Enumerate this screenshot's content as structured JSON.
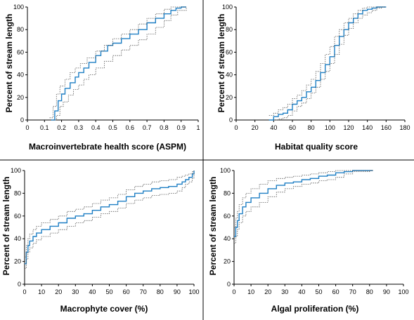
{
  "style": {
    "line_color": "#1f7fc4",
    "ci_color": "#555555",
    "axis_color": "#000000",
    "divider_color": "#000000"
  },
  "chart_data": [
    {
      "type": "line",
      "title": "",
      "xlabel": "Macroinvertebrate health score (ASPM)",
      "ylabel": "Percent of stream length",
      "xlim": [
        0,
        1
      ],
      "ylim": [
        0,
        100
      ],
      "xticks": [
        "0",
        "0.1",
        "0.2",
        "0.3",
        "0.4",
        "0.5",
        "0.6",
        "0.7",
        "0.8",
        "0.9",
        "1"
      ],
      "yticks": [
        "0",
        "20",
        "40",
        "60",
        "80",
        "100"
      ],
      "grid": false,
      "legend": "none",
      "series": [
        {
          "role": "estimate",
          "x": [
            0.14,
            0.16,
            0.18,
            0.2,
            0.22,
            0.25,
            0.28,
            0.3,
            0.33,
            0.36,
            0.4,
            0.43,
            0.47,
            0.5,
            0.55,
            0.6,
            0.65,
            0.7,
            0.75,
            0.8,
            0.84,
            0.87,
            0.9,
            0.93
          ],
          "y": [
            0,
            8,
            17,
            23,
            28,
            33,
            38,
            42,
            46,
            51,
            57,
            61,
            66,
            68,
            72,
            76,
            80,
            86,
            90,
            94,
            97,
            99,
            100,
            100
          ]
        },
        {
          "role": "upper",
          "x": [
            0.13,
            0.15,
            0.17,
            0.19,
            0.22,
            0.25,
            0.28,
            0.31,
            0.35,
            0.4,
            0.45,
            0.5,
            0.55,
            0.6,
            0.65,
            0.7,
            0.75,
            0.8,
            0.84,
            0.87,
            0.93
          ],
          "y": [
            2,
            12,
            23,
            30,
            36,
            42,
            46,
            50,
            55,
            61,
            66,
            72,
            76,
            80,
            85,
            90,
            94,
            98,
            100,
            100,
            100
          ]
        },
        {
          "role": "lower",
          "x": [
            0.15,
            0.17,
            0.19,
            0.21,
            0.24,
            0.27,
            0.3,
            0.33,
            0.36,
            0.4,
            0.45,
            0.5,
            0.55,
            0.6,
            0.65,
            0.7,
            0.75,
            0.8,
            0.84,
            0.88,
            0.93
          ],
          "y": [
            0,
            4,
            12,
            16,
            22,
            27,
            31,
            36,
            40,
            46,
            52,
            57,
            62,
            66,
            71,
            76,
            82,
            88,
            93,
            97,
            100
          ]
        }
      ]
    },
    {
      "type": "line",
      "title": "",
      "xlabel": "Habitat quality score",
      "ylabel": "Percent of stream length",
      "xlim": [
        0,
        180
      ],
      "ylim": [
        0,
        100
      ],
      "xticks": [
        "0",
        "20",
        "40",
        "60",
        "80",
        "100",
        "120",
        "140",
        "160",
        "180"
      ],
      "yticks": [
        "0",
        "20",
        "40",
        "60",
        "80",
        "100"
      ],
      "grid": false,
      "legend": "none",
      "series": [
        {
          "role": "estimate",
          "x": [
            35,
            40,
            45,
            50,
            55,
            60,
            65,
            70,
            75,
            80,
            85,
            90,
            95,
            100,
            105,
            110,
            115,
            120,
            125,
            130,
            135,
            140,
            145,
            150,
            160
          ],
          "y": [
            0,
            3,
            5,
            6,
            9,
            14,
            17,
            20,
            25,
            29,
            35,
            42,
            49,
            56,
            66,
            74,
            80,
            86,
            90,
            94,
            97,
            98,
            99,
            100,
            100
          ]
        },
        {
          "role": "upper",
          "x": [
            35,
            40,
            45,
            50,
            55,
            60,
            65,
            70,
            75,
            80,
            85,
            90,
            95,
            100,
            105,
            110,
            115,
            120,
            125,
            130,
            135,
            140,
            145,
            160
          ],
          "y": [
            4,
            6,
            9,
            11,
            14,
            19,
            22,
            26,
            31,
            36,
            43,
            50,
            58,
            65,
            74,
            80,
            86,
            90,
            94,
            97,
            99,
            100,
            100,
            100
          ]
        },
        {
          "role": "lower",
          "x": [
            40,
            45,
            50,
            55,
            60,
            65,
            70,
            75,
            80,
            85,
            90,
            95,
            100,
            105,
            110,
            115,
            120,
            125,
            130,
            135,
            140,
            145,
            150,
            155,
            160
          ],
          "y": [
            0,
            1,
            2,
            4,
            8,
            12,
            15,
            19,
            24,
            29,
            36,
            43,
            50,
            58,
            67,
            75,
            81,
            86,
            90,
            93,
            95,
            97,
            99,
            100,
            100
          ]
        }
      ]
    },
    {
      "type": "line",
      "title": "",
      "xlabel": "Macrophyte cover (%)",
      "ylabel": "Percent of stream length",
      "xlim": [
        0,
        100
      ],
      "ylim": [
        0,
        100
      ],
      "xticks": [
        "0",
        "10",
        "20",
        "30",
        "40",
        "50",
        "60",
        "70",
        "80",
        "90",
        "100"
      ],
      "yticks": [
        "0",
        "20",
        "40",
        "60",
        "80",
        "100"
      ],
      "grid": false,
      "legend": "none",
      "series": [
        {
          "role": "estimate",
          "x": [
            0,
            1,
            2,
            3,
            5,
            7,
            10,
            15,
            20,
            25,
            30,
            35,
            40,
            45,
            50,
            55,
            60,
            65,
            70,
            75,
            80,
            85,
            90,
            93,
            95,
            97,
            99,
            100
          ],
          "y": [
            18,
            28,
            34,
            38,
            42,
            45,
            48,
            51,
            54,
            58,
            60,
            62,
            65,
            68,
            70,
            73,
            77,
            80,
            82,
            84,
            85,
            86,
            88,
            90,
            92,
            94,
            97,
            100
          ]
        },
        {
          "role": "upper",
          "x": [
            0,
            1,
            2,
            3,
            5,
            7,
            10,
            15,
            20,
            25,
            30,
            35,
            40,
            45,
            50,
            55,
            60,
            65,
            70,
            75,
            80,
            85,
            90,
            93,
            95,
            97,
            99,
            100
          ],
          "y": [
            24,
            34,
            40,
            44,
            48,
            51,
            54,
            57,
            60,
            64,
            66,
            68,
            71,
            74,
            76,
            79,
            83,
            86,
            88,
            90,
            91,
            92,
            94,
            95,
            96,
            97,
            99,
            100
          ]
        },
        {
          "role": "lower",
          "x": [
            0,
            1,
            2,
            3,
            5,
            7,
            10,
            15,
            20,
            25,
            30,
            35,
            40,
            45,
            50,
            55,
            60,
            65,
            70,
            75,
            80,
            85,
            90,
            93,
            95,
            97,
            99,
            100
          ],
          "y": [
            14,
            22,
            28,
            32,
            36,
            39,
            42,
            45,
            48,
            51,
            54,
            56,
            59,
            62,
            64,
            67,
            71,
            74,
            76,
            78,
            79,
            80,
            82,
            85,
            88,
            90,
            93,
            98
          ]
        }
      ]
    },
    {
      "type": "line",
      "title": "",
      "xlabel": "Algal proliferation (%)",
      "ylabel": "Percent of stream length",
      "xlim": [
        0,
        100
      ],
      "ylim": [
        0,
        100
      ],
      "xticks": [
        "0",
        "10",
        "20",
        "30",
        "40",
        "50",
        "60",
        "70",
        "80",
        "90",
        "100"
      ],
      "yticks": [
        "0",
        "20",
        "40",
        "60",
        "80",
        "100"
      ],
      "grid": false,
      "legend": "none",
      "series": [
        {
          "role": "estimate",
          "x": [
            0,
            1,
            2,
            3,
            5,
            7,
            10,
            15,
            20,
            25,
            30,
            35,
            40,
            45,
            50,
            55,
            60,
            65,
            70,
            80,
            82
          ],
          "y": [
            42,
            50,
            56,
            62,
            68,
            72,
            76,
            80,
            84,
            87,
            89,
            90,
            92,
            93,
            95,
            96,
            98,
            99,
            100,
            100,
            100
          ]
        },
        {
          "role": "upper",
          "x": [
            0,
            1,
            2,
            3,
            5,
            7,
            10,
            15,
            20,
            25,
            30,
            35,
            40,
            45,
            50,
            55,
            60,
            65,
            82
          ],
          "y": [
            50,
            58,
            64,
            70,
            76,
            80,
            84,
            88,
            91,
            93,
            94,
            95,
            96,
            97,
            98,
            99,
            100,
            100,
            100
          ]
        },
        {
          "role": "lower",
          "x": [
            0,
            1,
            2,
            3,
            5,
            7,
            10,
            15,
            20,
            25,
            30,
            35,
            40,
            45,
            50,
            55,
            60,
            65,
            70,
            80,
            82
          ],
          "y": [
            36,
            42,
            48,
            54,
            60,
            64,
            68,
            72,
            77,
            81,
            84,
            86,
            88,
            89,
            91,
            92,
            94,
            97,
            99,
            100,
            100
          ]
        }
      ]
    }
  ]
}
